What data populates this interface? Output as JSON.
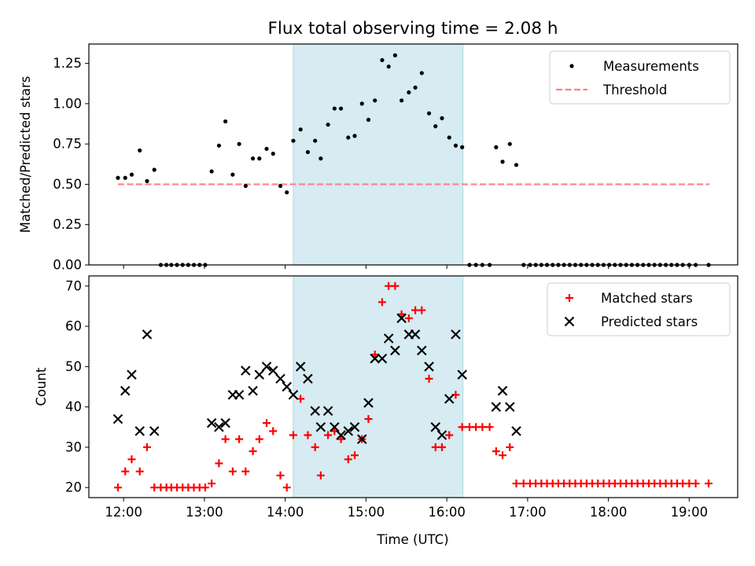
{
  "figure": {
    "title": "Flux total observing time = 2.08 h",
    "xlabel": "Time (UTC)",
    "xtick_labels": [
      "12:00",
      "13:00",
      "14:00",
      "15:00",
      "16:00",
      "17:00",
      "18:00",
      "19:00"
    ]
  },
  "colors": {
    "measurement": "#000000",
    "threshold": "#ff8080",
    "matched": "#ff0000",
    "predicted": "#000000",
    "highlight": "#add8e6"
  },
  "chart_data": [
    {
      "type": "scatter",
      "panel": "top",
      "ylabel": "Matched/Predicted stars",
      "ylim": [
        0,
        1.37
      ],
      "xlim": [
        11.57,
        19.6
      ],
      "ytick_labels": [
        "0.00",
        "0.25",
        "0.50",
        "0.75",
        "1.00",
        "1.25"
      ],
      "highlight_span": [
        14.1,
        16.2
      ],
      "legend": {
        "placement": "top-right",
        "entries": [
          "Measurements",
          "Threshold"
        ]
      },
      "threshold": {
        "name": "Threshold",
        "y": 0.5,
        "x": [
          11.93,
          19.25
        ],
        "style": "dashed"
      },
      "measurements": {
        "name": "Measurements",
        "x": [
          11.93,
          12.02,
          12.1,
          12.2,
          12.29,
          12.38,
          12.46,
          12.53,
          12.59,
          12.66,
          12.73,
          12.8,
          12.87,
          12.94,
          13.01,
          13.09,
          13.18,
          13.26,
          13.35,
          13.43,
          13.51,
          13.6,
          13.68,
          13.77,
          13.85,
          13.94,
          14.02,
          14.1,
          14.19,
          14.28,
          14.37,
          14.44,
          14.53,
          14.61,
          14.69,
          14.78,
          14.86,
          14.95,
          15.03,
          15.11,
          15.2,
          15.28,
          15.36,
          15.44,
          15.53,
          15.61,
          15.69,
          15.78,
          15.86,
          15.94,
          16.03,
          16.11,
          16.19,
          16.28,
          16.36,
          16.44,
          16.53,
          16.61,
          16.69,
          16.78,
          16.86,
          16.95,
          17.03,
          17.1,
          17.17,
          17.24,
          17.31,
          17.38,
          17.45,
          17.52,
          17.59,
          17.66,
          17.73,
          17.8,
          17.87,
          17.94,
          18.01,
          18.08,
          18.15,
          18.22,
          18.29,
          18.36,
          18.43,
          18.5,
          18.57,
          18.64,
          18.71,
          18.78,
          18.85,
          18.92,
          19.0,
          19.08,
          19.24
        ],
        "y": [
          0.54,
          0.54,
          0.56,
          0.71,
          0.52,
          0.59,
          0.0,
          0.0,
          0.0,
          0.0,
          0.0,
          0.0,
          0.0,
          0.0,
          0.0,
          0.58,
          0.74,
          0.89,
          0.56,
          0.75,
          0.49,
          0.66,
          0.66,
          0.72,
          0.69,
          0.49,
          0.45,
          0.77,
          0.84,
          0.7,
          0.77,
          0.66,
          0.87,
          0.97,
          0.97,
          0.79,
          0.8,
          1.0,
          0.9,
          1.02,
          1.27,
          1.23,
          1.3,
          1.02,
          1.07,
          1.1,
          1.19,
          0.94,
          0.86,
          0.91,
          0.79,
          0.74,
          0.73,
          0.0,
          0.0,
          0.0,
          0.0,
          0.73,
          0.64,
          0.75,
          0.62,
          0.0,
          0.0,
          0.0,
          0.0,
          0.0,
          0.0,
          0.0,
          0.0,
          0.0,
          0.0,
          0.0,
          0.0,
          0.0,
          0.0,
          0.0,
          0.0,
          0.0,
          0.0,
          0.0,
          0.0,
          0.0,
          0.0,
          0.0,
          0.0,
          0.0,
          0.0,
          0.0,
          0.0,
          0.0,
          0.0,
          0.0,
          0.0
        ]
      }
    },
    {
      "type": "scatter",
      "panel": "bottom",
      "ylabel": "Count",
      "ylim": [
        17.5,
        72.5
      ],
      "xlim": [
        11.57,
        19.6
      ],
      "ytick_labels": [
        "20",
        "30",
        "40",
        "50",
        "60",
        "70"
      ],
      "highlight_span": [
        14.1,
        16.2
      ],
      "legend": {
        "placement": "top-right",
        "entries": [
          "Matched stars",
          "Predicted stars"
        ]
      },
      "matched": {
        "name": "Matched stars",
        "marker": "plus",
        "x": [
          11.93,
          12.02,
          12.1,
          12.2,
          12.29,
          12.38,
          12.46,
          12.53,
          12.59,
          12.66,
          12.73,
          12.8,
          12.87,
          12.94,
          13.01,
          13.09,
          13.18,
          13.26,
          13.35,
          13.43,
          13.51,
          13.6,
          13.68,
          13.77,
          13.85,
          13.94,
          14.02,
          14.1,
          14.19,
          14.28,
          14.37,
          14.44,
          14.53,
          14.61,
          14.69,
          14.78,
          14.86,
          14.95,
          15.03,
          15.11,
          15.2,
          15.28,
          15.36,
          15.44,
          15.53,
          15.61,
          15.69,
          15.78,
          15.86,
          15.94,
          16.03,
          16.11,
          16.19,
          16.28,
          16.36,
          16.44,
          16.53,
          16.61,
          16.69,
          16.78,
          16.86,
          16.95,
          17.03,
          17.1,
          17.17,
          17.24,
          17.31,
          17.38,
          17.45,
          17.52,
          17.59,
          17.66,
          17.73,
          17.8,
          17.87,
          17.94,
          18.01,
          18.08,
          18.15,
          18.22,
          18.29,
          18.36,
          18.43,
          18.5,
          18.57,
          18.64,
          18.71,
          18.78,
          18.85,
          18.92,
          19.0,
          19.08,
          19.24
        ],
        "y": [
          20,
          24,
          27,
          24,
          30,
          20,
          20,
          20,
          20,
          20,
          20,
          20,
          20,
          20,
          20,
          21,
          26,
          32,
          24,
          32,
          24,
          29,
          32,
          36,
          34,
          23,
          20,
          33,
          42,
          33,
          30,
          23,
          33,
          34,
          32,
          27,
          28,
          32,
          37,
          53,
          66,
          70,
          70,
          63,
          62,
          64,
          64,
          47,
          30,
          30,
          33,
          43,
          35,
          35,
          35,
          35,
          35,
          29,
          28,
          30,
          21,
          21,
          21,
          21,
          21,
          21,
          21,
          21,
          21,
          21,
          21,
          21,
          21,
          21,
          21,
          21,
          21,
          21,
          21,
          21,
          21,
          21,
          21,
          21,
          21,
          21,
          21,
          21,
          21,
          21,
          21,
          21,
          21
        ]
      },
      "predicted": {
        "name": "Predicted stars",
        "marker": "x",
        "x": [
          11.93,
          12.02,
          12.1,
          12.2,
          12.29,
          12.38,
          13.09,
          13.18,
          13.26,
          13.35,
          13.43,
          13.51,
          13.6,
          13.68,
          13.77,
          13.85,
          13.94,
          14.02,
          14.1,
          14.19,
          14.28,
          14.37,
          14.44,
          14.53,
          14.61,
          14.69,
          14.78,
          14.86,
          14.95,
          15.03,
          15.11,
          15.2,
          15.28,
          15.36,
          15.44,
          15.53,
          15.61,
          15.69,
          15.78,
          15.86,
          15.94,
          16.03,
          16.11,
          16.19,
          16.61,
          16.69,
          16.78,
          16.86
        ],
        "y": [
          37,
          44,
          48,
          34,
          58,
          34,
          36,
          35,
          36,
          43,
          43,
          49,
          44,
          48,
          50,
          49,
          47,
          45,
          43,
          50,
          47,
          39,
          35,
          39,
          35,
          33,
          34,
          35,
          32,
          41,
          52,
          52,
          57,
          54,
          62,
          58,
          58,
          54,
          50,
          35,
          33,
          42,
          58,
          48,
          40,
          44,
          40,
          34
        ]
      }
    }
  ]
}
